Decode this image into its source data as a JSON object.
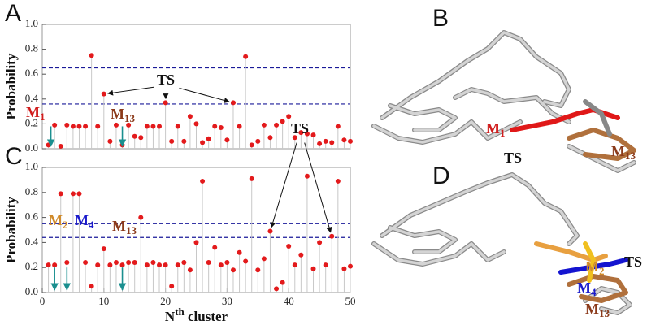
{
  "chart_data": [
    {
      "type": "stem",
      "panel_label": "A",
      "y_label": "Probability",
      "color": "#e31a1c",
      "stem_color": "#c8c8c8",
      "xlim": [
        0,
        50
      ],
      "ylim": [
        0,
        1
      ],
      "yticks": [
        {
          "value": 0,
          "label": "0.0"
        },
        0.2,
        0.4,
        0.6,
        0.8,
        {
          "value": 1,
          "label": "1.0"
        }
      ],
      "hlines": [
        {
          "value": 0.65,
          "color": "#1a1a99"
        },
        {
          "value": 0.36,
          "color": "#1a1a99"
        }
      ],
      "x": [
        1,
        2,
        3,
        4,
        5,
        6,
        7,
        8,
        9,
        10,
        11,
        12,
        13,
        14,
        15,
        16,
        17,
        18,
        19,
        20,
        21,
        22,
        23,
        24,
        25,
        26,
        27,
        28,
        29,
        30,
        31,
        32,
        33,
        34,
        35,
        36,
        37,
        38,
        39,
        40,
        41,
        42,
        43,
        44,
        45,
        46,
        47,
        48,
        49,
        50
      ],
      "values": [
        0.03,
        0.19,
        0.02,
        0.19,
        0.18,
        0.18,
        0.18,
        0.75,
        0.18,
        0.44,
        0.06,
        0.19,
        0.03,
        0.19,
        0.1,
        0.09,
        0.18,
        0.18,
        0.18,
        0.37,
        0.06,
        0.18,
        0.06,
        0.26,
        0.2,
        0.05,
        0.08,
        0.18,
        0.17,
        0.07,
        0.37,
        0.18,
        0.74,
        0.03,
        0.06,
        0.19,
        0.09,
        0.19,
        0.22,
        0.26,
        0.09,
        0.13,
        0.12,
        0.11,
        0.04,
        0.06,
        0.05,
        0.18,
        0.07,
        0.06
      ],
      "annotations": [
        {
          "text": "TS",
          "color": "#111111"
        },
        {
          "text": "M",
          "sub": "1",
          "color": "#d01c1c"
        },
        {
          "text": "M",
          "sub": "13",
          "color": "#8b3a1a"
        }
      ]
    },
    {
      "type": "stem",
      "panel_label": "C",
      "y_label": "Probability",
      "color": "#e31a1c",
      "stem_color": "#c8c8c8",
      "x_label": "N",
      "x_label_sup": "th",
      "x_label_rest": " cluster",
      "xlim": [
        0,
        50
      ],
      "ylim": [
        0,
        1
      ],
      "xticks": [
        0,
        10,
        20,
        30,
        40,
        50
      ],
      "yticks": [
        {
          "value": 0,
          "label": "0.0"
        },
        0.2,
        0.4,
        0.6,
        0.8,
        {
          "value": 1,
          "label": "1.0"
        }
      ],
      "hlines": [
        {
          "value": 0.55,
          "color": "#1a1a99"
        },
        {
          "value": 0.44,
          "color": "#1a1a99"
        }
      ],
      "x": [
        1,
        2,
        3,
        4,
        5,
        6,
        7,
        8,
        9,
        10,
        11,
        12,
        13,
        14,
        15,
        16,
        17,
        18,
        19,
        20,
        21,
        22,
        23,
        24,
        25,
        26,
        27,
        28,
        29,
        30,
        31,
        32,
        33,
        34,
        35,
        36,
        37,
        38,
        39,
        40,
        41,
        42,
        43,
        44,
        45,
        46,
        47,
        48,
        49,
        50
      ],
      "values": [
        0.22,
        0.22,
        0.79,
        0.24,
        0.79,
        0.79,
        0.24,
        0.05,
        0.22,
        0.35,
        0.22,
        0.24,
        0.22,
        0.24,
        0.24,
        0.6,
        0.22,
        0.24,
        0.22,
        0.22,
        0.05,
        0.22,
        0.24,
        0.18,
        0.4,
        0.89,
        0.24,
        0.36,
        0.22,
        0.24,
        0.18,
        0.32,
        0.25,
        0.91,
        0.18,
        0.27,
        0.49,
        0.03,
        0.08,
        0.37,
        0.22,
        0.3,
        0.93,
        0.19,
        0.4,
        0.22,
        0.45,
        0.89,
        0.19,
        0.21
      ],
      "annotations": [
        {
          "text": "TS",
          "color": "#111111"
        },
        {
          "text": "M",
          "sub": "2",
          "color": "#d08a2a"
        },
        {
          "text": "M",
          "sub": "4",
          "color": "#1a1acc"
        },
        {
          "text": "M",
          "sub": "13",
          "color": "#8b3a1a"
        }
      ]
    }
  ],
  "images": [
    {
      "label": "B",
      "annotations": [
        {
          "text": "M",
          "sub": "1",
          "color": "#d01c1c"
        },
        {
          "text": "TS",
          "color": "#111111"
        },
        {
          "text": "M",
          "sub": "13",
          "color": "#8b3a1a"
        }
      ]
    },
    {
      "label": "D",
      "annotations": [
        {
          "text": "M",
          "sub": "2",
          "color": "#d08a2a"
        },
        {
          "text": "TS",
          "color": "#111111"
        },
        {
          "text": "M",
          "sub": "4",
          "color": "#1a1acc"
        },
        {
          "text": "M",
          "sub": "13",
          "color": "#8b3a1a"
        }
      ]
    }
  ]
}
